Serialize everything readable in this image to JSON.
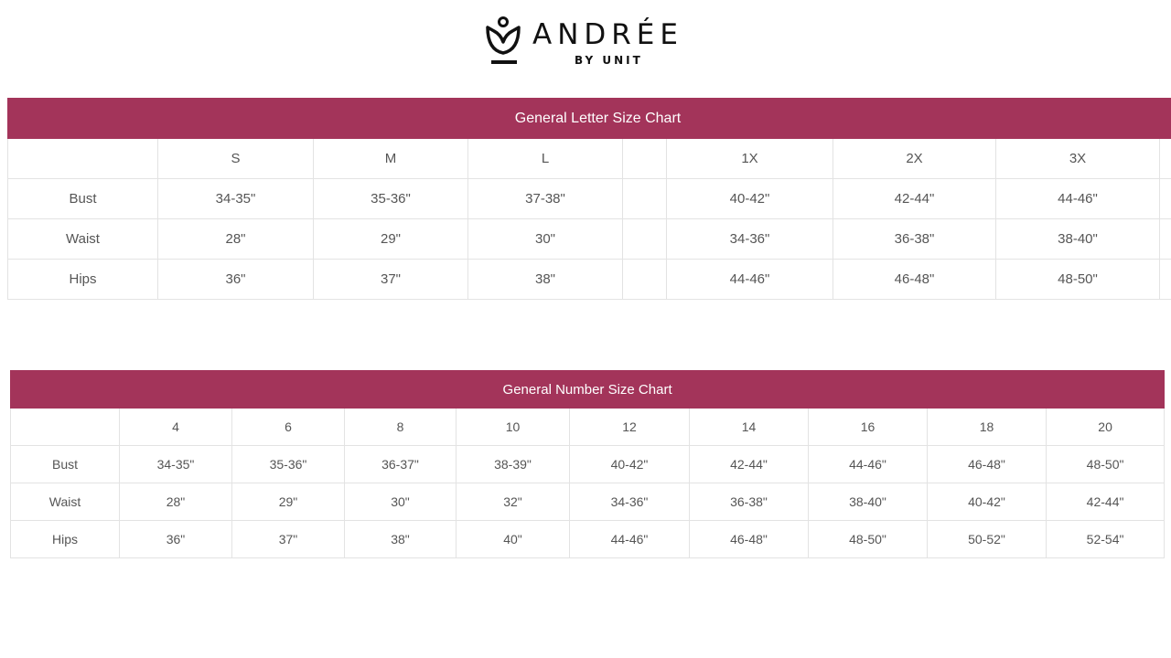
{
  "brand": {
    "name": "ANDRÉE",
    "tagline": "BY UNIT",
    "color": "#111111"
  },
  "accent_color": "#a3345a",
  "letter_chart": {
    "title": "General Letter Size Chart",
    "columns": [
      "",
      "S",
      "M",
      "L",
      "",
      "1X",
      "2X",
      "3X",
      ""
    ],
    "rows": [
      {
        "label": "Bust",
        "values": [
          "34-35\"",
          "35-36\"",
          "37-38\"",
          "",
          "40-42\"",
          "42-44\"",
          "44-46\"",
          ""
        ]
      },
      {
        "label": "Waist",
        "values": [
          "28\"",
          "29\"",
          "30\"",
          "",
          "34-36\"",
          "36-38\"",
          "38-40\"",
          ""
        ]
      },
      {
        "label": "Hips",
        "values": [
          "36\"",
          "37\"",
          "38\"",
          "",
          "44-46\"",
          "46-48\"",
          "48-50\"",
          ""
        ]
      }
    ]
  },
  "number_chart": {
    "title": "General Number Size Chart",
    "columns": [
      "",
      "4",
      "6",
      "8",
      "10",
      "12",
      "14",
      "16",
      "18",
      "20"
    ],
    "rows": [
      {
        "label": "Bust",
        "values": [
          "34-35\"",
          "35-36\"",
          "36-37\"",
          "38-39\"",
          "40-42\"",
          "42-44\"",
          "44-46\"",
          "46-48\"",
          "48-50\""
        ]
      },
      {
        "label": "Waist",
        "values": [
          "28\"",
          "29\"",
          "30\"",
          "32\"",
          "34-36\"",
          "36-38\"",
          "38-40\"",
          "40-42\"",
          "42-44\""
        ]
      },
      {
        "label": "Hips",
        "values": [
          "36\"",
          "37\"",
          "38\"",
          "40\"",
          "44-46\"",
          "46-48\"",
          "48-50\"",
          "50-52\"",
          "52-54\""
        ]
      }
    ]
  }
}
